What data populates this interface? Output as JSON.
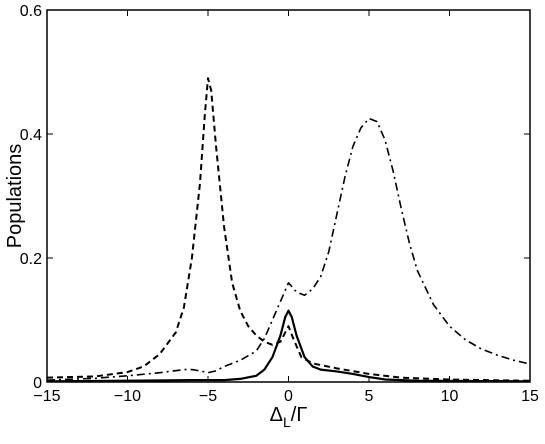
{
  "chart_data": {
    "type": "line",
    "title": "",
    "xlabel": "Δ",
    "xlabel_sub": "L",
    "xlabel_suffix": "/Γ",
    "ylabel": "Populations",
    "xlim": [
      -15,
      15
    ],
    "ylim": [
      0,
      0.6
    ],
    "xticks": [
      -15,
      -10,
      -5,
      0,
      5,
      10,
      15
    ],
    "yticks": [
      0,
      0.2,
      0.4,
      0.6
    ],
    "grid": false,
    "legend": "none",
    "series": [
      {
        "style": "dashed",
        "color": "#000000",
        "points": [
          [
            -15,
            0.007
          ],
          [
            -12,
            0.009
          ],
          [
            -10,
            0.016
          ],
          [
            -9,
            0.025
          ],
          [
            -8,
            0.045
          ],
          [
            -7,
            0.08
          ],
          [
            -6.5,
            0.12
          ],
          [
            -6,
            0.2
          ],
          [
            -5.5,
            0.32
          ],
          [
            -5.2,
            0.43
          ],
          [
            -5,
            0.49
          ],
          [
            -4.8,
            0.47
          ],
          [
            -4.5,
            0.38
          ],
          [
            -4,
            0.25
          ],
          [
            -3.5,
            0.16
          ],
          [
            -3,
            0.115
          ],
          [
            -2.5,
            0.09
          ],
          [
            -2,
            0.075
          ],
          [
            -1.5,
            0.065
          ],
          [
            -1,
            0.06
          ],
          [
            -0.5,
            0.065
          ],
          [
            0,
            0.09
          ],
          [
            0.3,
            0.07
          ],
          [
            0.8,
            0.04
          ],
          [
            1.5,
            0.03
          ],
          [
            3,
            0.022
          ],
          [
            5,
            0.013
          ],
          [
            7,
            0.007
          ],
          [
            10,
            0.004
          ],
          [
            15,
            0.002
          ]
        ]
      },
      {
        "style": "dashdot",
        "color": "#000000",
        "points": [
          [
            -15,
            0.003
          ],
          [
            -12,
            0.006
          ],
          [
            -10,
            0.01
          ],
          [
            -8,
            0.015
          ],
          [
            -6.5,
            0.02
          ],
          [
            -6,
            0.02
          ],
          [
            -5.5,
            0.018
          ],
          [
            -5,
            0.015
          ],
          [
            -4.5,
            0.018
          ],
          [
            -4,
            0.025
          ],
          [
            -3,
            0.035
          ],
          [
            -2,
            0.05
          ],
          [
            -1.5,
            0.07
          ],
          [
            -1,
            0.1
          ],
          [
            -0.5,
            0.13
          ],
          [
            0,
            0.16
          ],
          [
            0.5,
            0.145
          ],
          [
            1,
            0.14
          ],
          [
            1.5,
            0.15
          ],
          [
            2,
            0.17
          ],
          [
            2.5,
            0.21
          ],
          [
            3,
            0.27
          ],
          [
            3.5,
            0.33
          ],
          [
            4,
            0.38
          ],
          [
            4.5,
            0.41
          ],
          [
            5,
            0.425
          ],
          [
            5.5,
            0.42
          ],
          [
            6,
            0.39
          ],
          [
            6.5,
            0.34
          ],
          [
            7,
            0.28
          ],
          [
            7.5,
            0.225
          ],
          [
            8,
            0.18
          ],
          [
            9,
            0.125
          ],
          [
            10,
            0.09
          ],
          [
            11,
            0.068
          ],
          [
            12,
            0.053
          ],
          [
            13,
            0.043
          ],
          [
            14,
            0.035
          ],
          [
            15,
            0.029
          ]
        ]
      },
      {
        "style": "solid",
        "color": "#000000",
        "points": [
          [
            -15,
            0.001
          ],
          [
            -10,
            0.002
          ],
          [
            -6,
            0.003
          ],
          [
            -4,
            0.003
          ],
          [
            -3,
            0.005
          ],
          [
            -2,
            0.01
          ],
          [
            -1.5,
            0.02
          ],
          [
            -1,
            0.04
          ],
          [
            -0.5,
            0.075
          ],
          [
            -0.2,
            0.105
          ],
          [
            0,
            0.115
          ],
          [
            0.2,
            0.105
          ],
          [
            0.5,
            0.075
          ],
          [
            1,
            0.04
          ],
          [
            1.5,
            0.025
          ],
          [
            2,
            0.02
          ],
          [
            3,
            0.017
          ],
          [
            4,
            0.013
          ],
          [
            5,
            0.008
          ],
          [
            6,
            0.004
          ],
          [
            8,
            0.002
          ],
          [
            15,
            0.001
          ]
        ]
      }
    ]
  }
}
